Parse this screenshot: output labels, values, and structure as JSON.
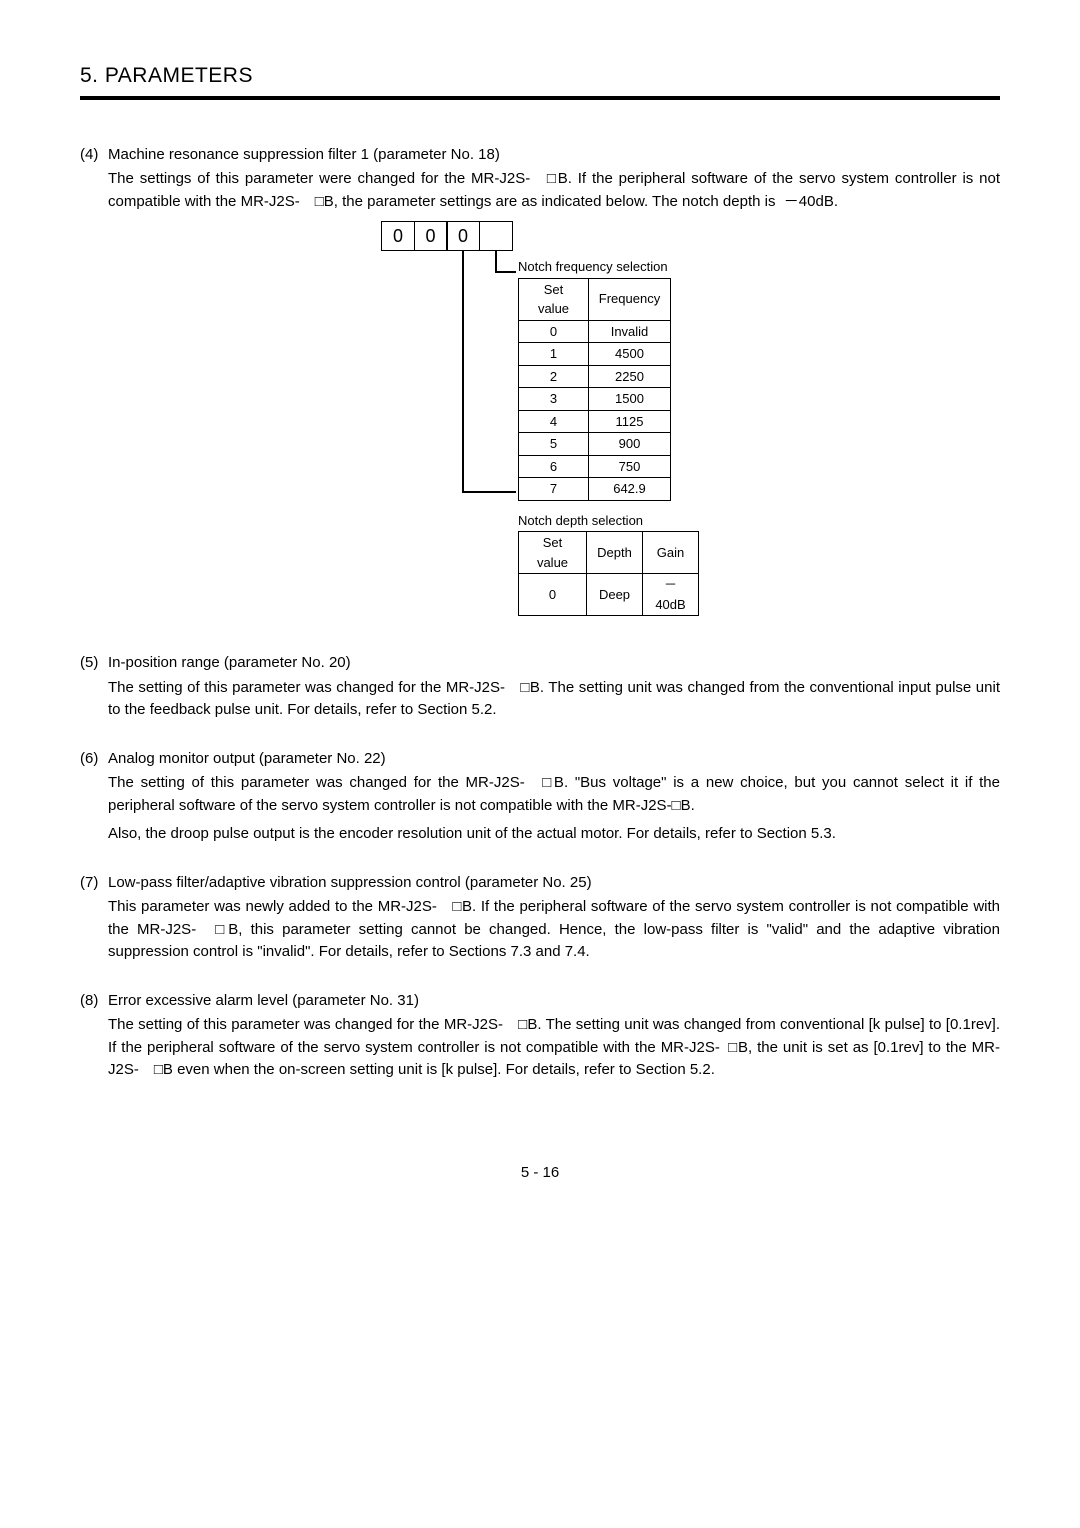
{
  "chapter": "5. PARAMETERS",
  "sections": [
    {
      "num": "(4)",
      "title": "Machine resonance suppression filter 1 (parameter No. 18)",
      "paras": [
        "The settings of this parameter were changed for the MR-J2S- □B. If the peripheral software of the servo system controller is not compatible with the MR-J2S- □B, the parameter settings are as indicated below. The notch depth is  －40dB."
      ]
    },
    {
      "num": "(5)",
      "title": "In-position range (parameter No. 20)",
      "paras": [
        "The setting of this parameter was changed for the MR-J2S- □B. The setting unit was changed from the conventional input pulse unit to the feedback pulse unit. For details, refer to Section 5.2."
      ]
    },
    {
      "num": "(6)",
      "title": "Analog monitor output (parameter No. 22)",
      "paras": [
        "The setting of this parameter was changed for the MR-J2S- □B. \"Bus voltage\" is a new choice, but you cannot select it if the peripheral software of the servo system controller is not compatible with the MR-J2S-□B.",
        "Also, the droop pulse output is the encoder resolution unit of the actual motor. For details, refer to Section 5.3."
      ]
    },
    {
      "num": "(7)",
      "title": "Low-pass filter/adaptive vibration suppression control (parameter No. 25)",
      "paras": [
        "This parameter was newly added to the MR-J2S- □B. If the peripheral software of the servo system controller is not compatible with the MR-J2S- □B, this parameter setting cannot be changed. Hence, the low-pass filter is \"valid\" and the adaptive vibration suppression control is \"invalid\". For details, refer to Sections 7.3 and 7.4."
      ]
    },
    {
      "num": "(8)",
      "title": "Error excessive alarm level (parameter No. 31)",
      "paras": [
        "The setting of this parameter was changed for the MR-J2S- □B. The setting unit was changed from conventional [k pulse] to [0.1rev]. If the peripheral software of the servo system controller is not compatible with the MR-J2S- □B, the unit is set as [0.1rev] to the MR-J2S- □B even when the on-screen setting unit is [k pulse]. For details, refer to Section 5.2."
      ]
    }
  ],
  "diagram": {
    "digits": [
      "0",
      "0",
      "0",
      ""
    ],
    "freq_caption": "Notch frequency selection",
    "freq_table": {
      "headers": [
        "Set value",
        "Frequency"
      ],
      "rows": [
        [
          "0",
          "Invalid"
        ],
        [
          "1",
          "4500"
        ],
        [
          "2",
          "2250"
        ],
        [
          "3",
          "1500"
        ],
        [
          "4",
          "1125"
        ],
        [
          "5",
          "900"
        ],
        [
          "6",
          "750"
        ],
        [
          "7",
          "642.9"
        ]
      ],
      "col_widths": [
        "70px",
        "82px"
      ]
    },
    "depth_caption": "Notch depth selection",
    "depth_table": {
      "headers": [
        "Set value",
        "Depth",
        "Gain"
      ],
      "rows": [
        [
          "0",
          "Deep",
          "－40dB"
        ]
      ],
      "col_widths": [
        "68px",
        "56px",
        "56px"
      ]
    }
  },
  "page_number": "5 -  16"
}
